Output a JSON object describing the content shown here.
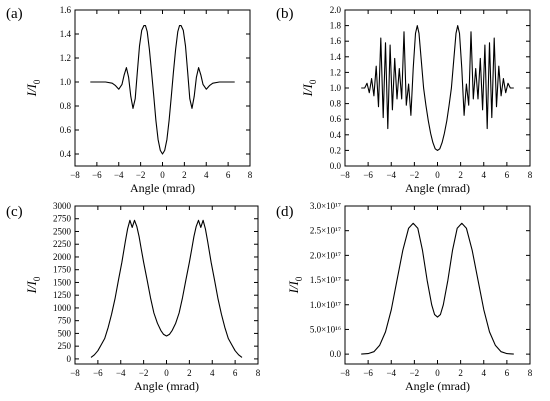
{
  "chart_data": [
    {
      "type": "line",
      "panel_label": "(a)",
      "xlabel": "Angle (mrad)",
      "ylabel_main": "I",
      "ylabel_sep": "/",
      "ylabel_denom": "I",
      "ylabel_sub": "0",
      "xlim": [
        -8,
        8
      ],
      "ylim": [
        0.3,
        1.6
      ],
      "xticks": [
        -8,
        -6,
        -4,
        -2,
        0,
        2,
        4,
        6,
        8
      ],
      "xtick_labels": [
        "−8",
        "−6",
        "−4",
        "−2",
        "0",
        "2",
        "4",
        "6",
        "8"
      ],
      "yticks": [
        0.4,
        0.6,
        0.8,
        1.0,
        1.2,
        1.4,
        1.6
      ],
      "ytick_labels": [
        "0.4",
        "0.6",
        "0.8",
        "1.0",
        "1.2",
        "1.4",
        "1.6"
      ],
      "series": [
        {
          "x": [
            -6.6,
            -5.2,
            -4.6,
            -4.3,
            -4.0,
            -3.7,
            -3.5,
            -3.3,
            -3.1,
            -2.9,
            -2.7,
            -2.5,
            -2.3,
            -2.1,
            -1.9,
            -1.7,
            -1.55,
            -1.4,
            -1.2,
            -1.0,
            -0.8,
            -0.6,
            -0.4,
            -0.2,
            0.0,
            0.2,
            0.4,
            0.6,
            0.8,
            1.0,
            1.2,
            1.4,
            1.55,
            1.7,
            1.9,
            2.1,
            2.3,
            2.5,
            2.7,
            2.9,
            3.1,
            3.3,
            3.5,
            3.7,
            4.0,
            4.3,
            4.6,
            5.2,
            6.6
          ],
          "y": [
            1.0,
            1.0,
            0.99,
            0.97,
            0.94,
            0.98,
            1.06,
            1.12,
            1.04,
            0.88,
            0.78,
            0.86,
            1.08,
            1.3,
            1.43,
            1.47,
            1.47,
            1.42,
            1.27,
            1.08,
            0.88,
            0.68,
            0.52,
            0.43,
            0.4,
            0.43,
            0.52,
            0.68,
            0.88,
            1.08,
            1.27,
            1.42,
            1.47,
            1.47,
            1.43,
            1.3,
            1.08,
            0.86,
            0.78,
            0.88,
            1.04,
            1.12,
            1.06,
            0.98,
            0.94,
            0.97,
            0.99,
            1.0,
            1.0
          ]
        }
      ]
    },
    {
      "type": "line",
      "panel_label": "(b)",
      "xlabel": "Angle (mrad)",
      "ylabel_main": "I",
      "ylabel_sep": "/",
      "ylabel_denom": "I",
      "ylabel_sub": "0",
      "xlim": [
        -8,
        8
      ],
      "ylim": [
        0.0,
        2.0
      ],
      "xticks": [
        -8,
        -6,
        -4,
        -2,
        0,
        2,
        4,
        6,
        8
      ],
      "xtick_labels": [
        "−8",
        "−6",
        "−4",
        "−2",
        "0",
        "2",
        "4",
        "6",
        "8"
      ],
      "yticks": [
        0.0,
        0.2,
        0.4,
        0.6,
        0.8,
        1.0,
        1.2,
        1.4,
        1.6,
        1.8,
        2.0
      ],
      "ytick_labels": [
        "0.0",
        "0.2",
        "0.4",
        "0.6",
        "0.8",
        "1.0",
        "1.2",
        "1.4",
        "1.6",
        "1.8",
        "2.0"
      ],
      "series": [
        {
          "x": [
            -6.6,
            -6.3,
            -6.1,
            -5.9,
            -5.7,
            -5.5,
            -5.3,
            -5.1,
            -4.9,
            -4.7,
            -4.5,
            -4.3,
            -4.1,
            -3.9,
            -3.7,
            -3.5,
            -3.3,
            -3.1,
            -2.9,
            -2.7,
            -2.5,
            -2.3,
            -2.1,
            -1.9,
            -1.75,
            -1.6,
            -1.4,
            -1.2,
            -1.0,
            -0.8,
            -0.6,
            -0.4,
            -0.2,
            0.0,
            0.2,
            0.4,
            0.6,
            0.8,
            1.0,
            1.2,
            1.4,
            1.6,
            1.75,
            1.9,
            2.1,
            2.3,
            2.5,
            2.7,
            2.9,
            3.1,
            3.3,
            3.5,
            3.7,
            3.9,
            4.1,
            4.3,
            4.5,
            4.7,
            4.9,
            5.1,
            5.3,
            5.5,
            5.7,
            5.9,
            6.1,
            6.3,
            6.6
          ],
          "y": [
            1.0,
            1.0,
            1.06,
            0.94,
            1.12,
            0.9,
            1.28,
            0.76,
            1.64,
            0.62,
            1.58,
            0.48,
            1.55,
            0.72,
            1.38,
            0.86,
            1.25,
            0.86,
            1.72,
            0.78,
            1.05,
            0.65,
            1.25,
            1.7,
            1.8,
            1.7,
            1.35,
            1.0,
            0.78,
            0.58,
            0.42,
            0.3,
            0.22,
            0.2,
            0.22,
            0.3,
            0.42,
            0.58,
            0.78,
            1.0,
            1.35,
            1.7,
            1.8,
            1.7,
            1.25,
            0.65,
            1.05,
            0.78,
            1.72,
            0.86,
            1.25,
            0.86,
            1.38,
            0.72,
            1.55,
            0.48,
            1.58,
            0.62,
            1.64,
            0.76,
            1.28,
            0.9,
            1.12,
            0.94,
            1.06,
            1.0,
            1.0
          ]
        }
      ]
    },
    {
      "type": "line",
      "panel_label": "(c)",
      "xlabel": "Angle (mrad)",
      "ylabel_main": "I",
      "ylabel_sep": "/",
      "ylabel_denom": "I",
      "ylabel_sub": "0",
      "xlim": [
        -8,
        8
      ],
      "ylim": [
        -100,
        3000
      ],
      "xticks": [
        -8,
        -6,
        -4,
        -2,
        0,
        2,
        4,
        6,
        8
      ],
      "xtick_labels": [
        "−8",
        "−6",
        "−4",
        "−2",
        "0",
        "2",
        "4",
        "6",
        "8"
      ],
      "yticks": [
        0,
        250,
        500,
        750,
        1000,
        1250,
        1500,
        1750,
        2000,
        2250,
        2500,
        2750,
        3000
      ],
      "ytick_labels": [
        "0",
        "250",
        "500",
        "750",
        "1000",
        "1250",
        "1500",
        "1750",
        "2000",
        "2250",
        "2500",
        "2750",
        "3000"
      ],
      "series": [
        {
          "x": [
            -6.6,
            -6.3,
            -6.0,
            -5.7,
            -5.4,
            -5.1,
            -4.8,
            -4.5,
            -4.2,
            -3.9,
            -3.6,
            -3.4,
            -3.2,
            -3.0,
            -2.8,
            -2.6,
            -2.4,
            -2.2,
            -2.0,
            -1.7,
            -1.4,
            -1.1,
            -0.8,
            -0.5,
            -0.25,
            0.0,
            0.25,
            0.5,
            0.8,
            1.1,
            1.4,
            1.7,
            2.0,
            2.2,
            2.4,
            2.6,
            2.8,
            3.0,
            3.2,
            3.4,
            3.6,
            3.9,
            4.2,
            4.5,
            4.8,
            5.1,
            5.4,
            5.7,
            6.0,
            6.3,
            6.6
          ],
          "y": [
            30,
            80,
            160,
            280,
            400,
            620,
            880,
            1180,
            1550,
            1900,
            2300,
            2550,
            2720,
            2580,
            2720,
            2600,
            2400,
            2150,
            1900,
            1550,
            1200,
            900,
            700,
            560,
            480,
            450,
            480,
            560,
            700,
            900,
            1200,
            1550,
            1900,
            2150,
            2400,
            2600,
            2720,
            2580,
            2720,
            2550,
            2300,
            1900,
            1550,
            1180,
            880,
            620,
            400,
            280,
            160,
            80,
            30
          ]
        }
      ]
    },
    {
      "type": "line",
      "panel_label": "(d)",
      "xlabel": "Angle (mrad)",
      "ylabel_main": "I",
      "ylabel_sep": "/",
      "ylabel_denom": "I",
      "ylabel_sub": "0",
      "xlim": [
        -8,
        8
      ],
      "ylim": [
        -2e+16,
        3e+17
      ],
      "xticks": [
        -8,
        -6,
        -4,
        -2,
        0,
        2,
        4,
        6,
        8
      ],
      "xtick_labels": [
        "−8",
        "−6",
        "−4",
        "−2",
        "0",
        "2",
        "4",
        "6",
        "8"
      ],
      "yticks": [
        0,
        5e+16,
        1e+17,
        1.5e+17,
        2e+17,
        2.5e+17,
        3e+17
      ],
      "ytick_labels": [
        "0.0",
        "5.0×10¹⁶",
        "1.0×10¹⁷",
        "1.5×10¹⁷",
        "2.0×10¹⁷",
        "2.5×10¹⁷",
        "3.0×10¹⁷"
      ],
      "series": [
        {
          "x": [
            -6.6,
            -6.0,
            -5.5,
            -5.0,
            -4.5,
            -4.0,
            -3.5,
            -3.0,
            -2.5,
            -2.1,
            -1.7,
            -1.3,
            -0.9,
            -0.5,
            -0.25,
            0.0,
            0.25,
            0.5,
            0.9,
            1.3,
            1.7,
            2.1,
            2.5,
            3.0,
            3.5,
            4.0,
            4.5,
            5.0,
            5.5,
            6.0,
            6.6
          ],
          "y": [
            0,
            1000000000000000.0,
            5000000000000000.0,
            1.8e+16,
            4.5e+16,
            9e+16,
            1.5e+17,
            2.1e+17,
            2.55e+17,
            2.65e+17,
            2.55e+17,
            2.1e+17,
            1.5e+17,
            1e+17,
            8e+16,
            7.5e+16,
            8e+16,
            1e+17,
            1.5e+17,
            2.1e+17,
            2.55e+17,
            2.65e+17,
            2.55e+17,
            2.1e+17,
            1.5e+17,
            9e+16,
            4.5e+16,
            1.8e+16,
            5000000000000000.0,
            1000000000000000.0,
            0
          ]
        }
      ]
    }
  ]
}
